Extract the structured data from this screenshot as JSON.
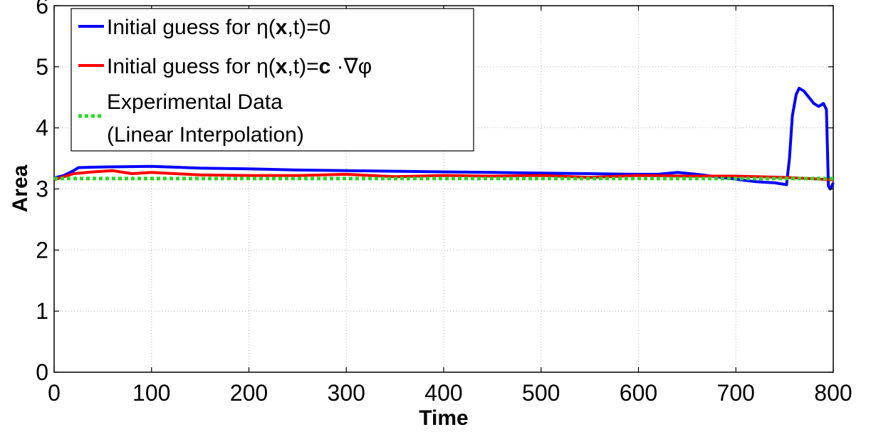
{
  "chart_data": {
    "type": "line",
    "xlabel": "Time",
    "ylabel": "Area",
    "xlim": [
      0,
      800
    ],
    "ylim": [
      0,
      6
    ],
    "xticks": [
      "0",
      "100",
      "200",
      "300",
      "400",
      "500",
      "600",
      "700",
      "800"
    ],
    "yticks": [
      "0",
      "1",
      "2",
      "3",
      "4",
      "5",
      "6"
    ],
    "grid": true,
    "legend_position": "top-left",
    "legend": [
      {
        "label": "Initial guess for η(x,t)=0",
        "pre": "Initial guess for η(",
        "bold": "x",
        "post": ",t)=0"
      },
      {
        "label": "Initial guess for η(x,t)=c ·∇φ",
        "pre": "Initial guess for η(",
        "bold": "x",
        "mid": ",t)=",
        "bold2": "c",
        "post": " ·∇φ"
      },
      {
        "label_lines": [
          "Experimental Data",
          "(Linear Interpolation)"
        ]
      }
    ],
    "series": [
      {
        "color": "#0000ff",
        "style": "solid",
        "x": [
          0,
          10,
          20,
          25,
          50,
          100,
          150,
          200,
          250,
          300,
          350,
          400,
          450,
          500,
          550,
          600,
          620,
          640,
          660,
          680,
          700,
          720,
          740,
          752,
          755,
          758,
          762,
          765,
          770,
          775,
          780,
          785,
          790,
          793,
          795,
          797,
          800
        ],
        "y": [
          3.18,
          3.22,
          3.3,
          3.35,
          3.36,
          3.37,
          3.34,
          3.33,
          3.31,
          3.3,
          3.29,
          3.28,
          3.27,
          3.26,
          3.25,
          3.24,
          3.24,
          3.27,
          3.24,
          3.2,
          3.16,
          3.12,
          3.1,
          3.07,
          3.5,
          4.2,
          4.55,
          4.65,
          4.6,
          4.5,
          4.4,
          4.35,
          4.4,
          4.3,
          3.05,
          3.0,
          3.1
        ]
      },
      {
        "color": "#ff0000",
        "style": "solid",
        "x": [
          0,
          20,
          40,
          60,
          80,
          100,
          150,
          200,
          250,
          300,
          350,
          400,
          450,
          500,
          550,
          600,
          650,
          700,
          750,
          800
        ],
        "y": [
          3.15,
          3.25,
          3.28,
          3.3,
          3.25,
          3.27,
          3.23,
          3.22,
          3.22,
          3.24,
          3.2,
          3.22,
          3.21,
          3.22,
          3.19,
          3.22,
          3.21,
          3.21,
          3.19,
          3.15
        ]
      },
      {
        "color": "#22dd22",
        "style": "dotted",
        "x": [
          0,
          800
        ],
        "y": [
          3.17,
          3.17
        ]
      }
    ]
  }
}
